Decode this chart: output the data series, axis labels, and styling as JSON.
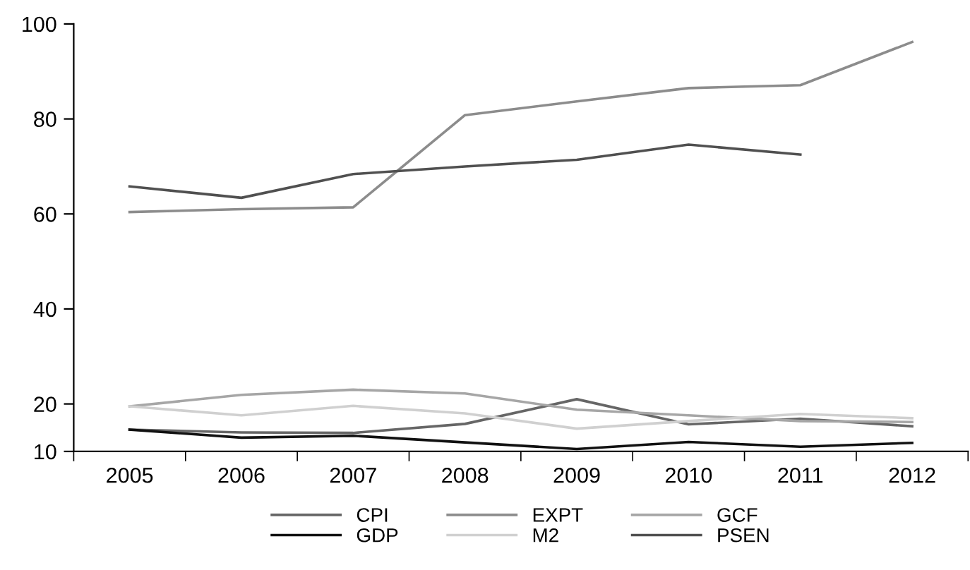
{
  "chart_data": {
    "type": "line",
    "categories": [
      "2005",
      "2006",
      "2007",
      "2008",
      "2009",
      "2010",
      "2011",
      "2012"
    ],
    "series": [
      {
        "name": "CPI",
        "color": "#666666",
        "values": [
          14.6,
          14.0,
          13.9,
          15.8,
          21.0,
          15.7,
          16.9,
          15.3
        ]
      },
      {
        "name": "EXPT",
        "color": "#8c8c8c",
        "values": [
          60.4,
          61.0,
          61.4,
          80.8,
          83.7,
          86.5,
          87.1,
          96.2
        ]
      },
      {
        "name": "GCF",
        "color": "#a6a6a6",
        "values": [
          19.5,
          21.9,
          23.0,
          22.2,
          18.8,
          17.6,
          16.4,
          16.2
        ]
      },
      {
        "name": "GDP",
        "color": "#111111",
        "values": [
          14.6,
          12.9,
          13.3,
          11.9,
          10.5,
          12.0,
          11.0,
          11.8
        ]
      },
      {
        "name": "M2",
        "color": "#d0d0d0",
        "values": [
          19.5,
          17.6,
          19.6,
          18.0,
          14.8,
          16.4,
          17.9,
          17.0
        ]
      },
      {
        "name": "PSEN",
        "color": "#505050",
        "values": [
          65.8,
          63.4,
          68.4,
          70.0,
          71.4,
          74.6,
          72.5,
          null
        ]
      }
    ],
    "ylim": [
      10,
      100
    ],
    "yticks": [
      10,
      20,
      40,
      60,
      80,
      100
    ],
    "grid": false,
    "legend": "bottom",
    "marker": "none",
    "line_style": "solid"
  }
}
